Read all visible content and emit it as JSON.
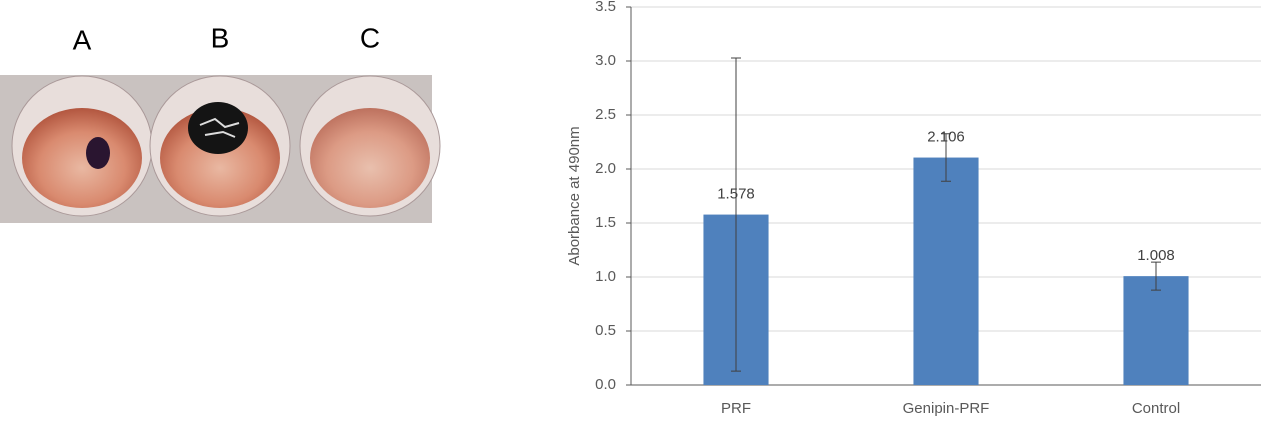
{
  "photo": {
    "labels": [
      "A",
      "B",
      "C"
    ]
  },
  "chart_data": {
    "type": "bar",
    "y_label": "Aborbance at 490nm",
    "categories": [
      "PRF",
      "Genipin-PRF",
      "Control"
    ],
    "values": [
      1.578,
      2.106,
      1.008
    ],
    "errors": [
      1.45,
      0.22,
      0.13
    ],
    "color": "#4f81bd",
    "ylim": [
      0,
      3.5
    ],
    "yticks": [
      {
        "value": 0,
        "label": "0.0"
      },
      0.5,
      {
        "value": 1,
        "label": "1.0"
      },
      1.5,
      {
        "value": 2,
        "label": "2.0"
      },
      2.5,
      {
        "value": 3,
        "label": "3.0"
      },
      3.5
    ],
    "grid": true
  }
}
